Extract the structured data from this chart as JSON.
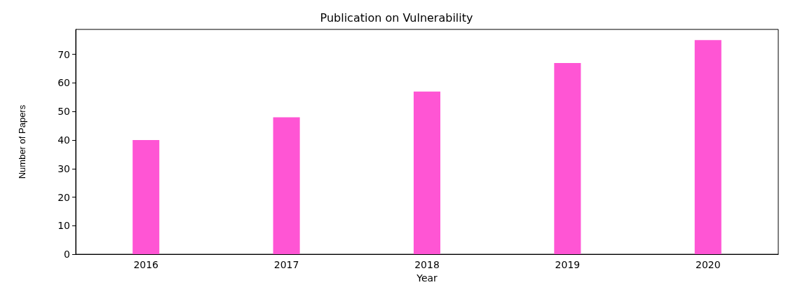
{
  "chart_data": {
    "type": "bar",
    "title": "Publication on Vulnerability",
    "xlabel": "Year",
    "ylabel": "Number of Papers",
    "categories": [
      "2016",
      "2017",
      "2018",
      "2019",
      "2020"
    ],
    "values": [
      40,
      48,
      57,
      67,
      75
    ],
    "color": "#ff55d4",
    "ylim": [
      0,
      78.75
    ],
    "yticks": [
      0,
      10,
      20,
      30,
      40,
      50,
      60,
      70
    ],
    "grid": false
  }
}
